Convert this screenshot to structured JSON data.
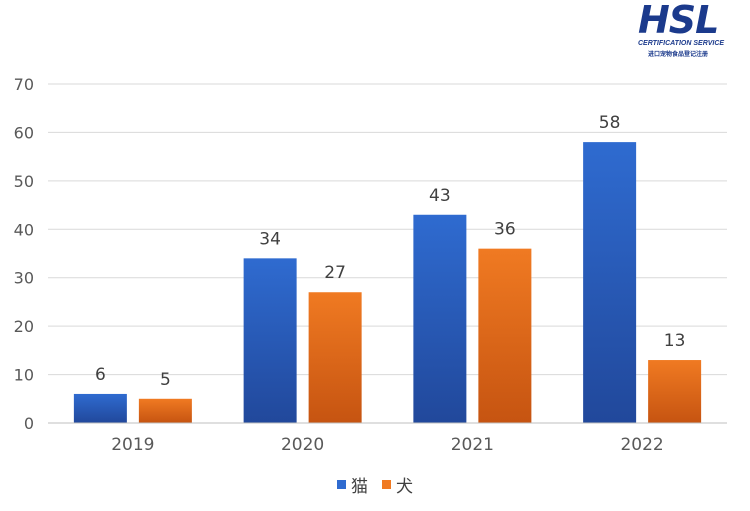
{
  "logo": {
    "brand": "HSL",
    "subtitle": "CERTIFICATION SERVICE",
    "subtitle_cn": "进口宠物食品登记注册"
  },
  "chart_data": {
    "type": "bar",
    "categories": [
      "2019",
      "2020",
      "2021",
      "2022"
    ],
    "series": [
      {
        "name": "猫",
        "values": [
          6,
          34,
          43,
          58
        ],
        "color": "#2f6bd0",
        "color_dark": "#21489b"
      },
      {
        "name": "犬",
        "values": [
          5,
          27,
          36,
          13
        ],
        "color": "#f07a22",
        "color_dark": "#c65411"
      }
    ],
    "ylim": [
      0,
      70
    ],
    "yticks": [
      0,
      10,
      20,
      30,
      40,
      50,
      60,
      70
    ],
    "grid": true,
    "legend": "bottom-center",
    "title": "",
    "xlabel": "",
    "ylabel": ""
  }
}
